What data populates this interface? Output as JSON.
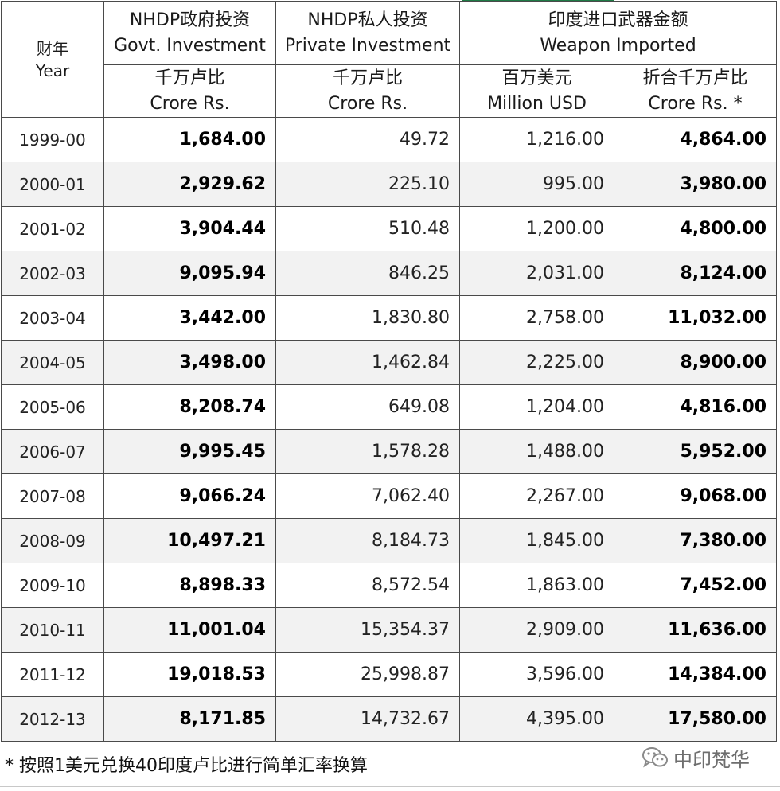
{
  "header": {
    "year": {
      "zh": "财年",
      "en": "Year"
    },
    "govt": {
      "zh": "NHDP政府投资",
      "en": "Govt. Investment"
    },
    "private": {
      "zh": "NHDP私人投资",
      "en": "Private Investment"
    },
    "weapon": {
      "zh": "印度进口武器金额",
      "en": "Weapon Imported"
    },
    "units": {
      "govt": {
        "zh": "千万卢比",
        "en": "Crore Rs."
      },
      "private": {
        "zh": "千万卢比",
        "en": "Crore Rs."
      },
      "usd": {
        "zh": "百万美元",
        "en": "Million USD"
      },
      "converted": {
        "zh": "折合千万卢比",
        "en": "Crore Rs. *"
      }
    }
  },
  "rows": [
    {
      "year": "1999-00",
      "govt": "1,684.00",
      "private": "49.72",
      "usd": "1,216.00",
      "crore": "4,864.00"
    },
    {
      "year": "2000-01",
      "govt": "2,929.62",
      "private": "225.10",
      "usd": "995.00",
      "crore": "3,980.00"
    },
    {
      "year": "2001-02",
      "govt": "3,904.44",
      "private": "510.48",
      "usd": "1,200.00",
      "crore": "4,800.00"
    },
    {
      "year": "2002-03",
      "govt": "9,095.94",
      "private": "846.25",
      "usd": "2,031.00",
      "crore": "8,124.00"
    },
    {
      "year": "2003-04",
      "govt": "3,442.00",
      "private": "1,830.80",
      "usd": "2,758.00",
      "crore": "11,032.00"
    },
    {
      "year": "2004-05",
      "govt": "3,498.00",
      "private": "1,462.84",
      "usd": "2,225.00",
      "crore": "8,900.00"
    },
    {
      "year": "2005-06",
      "govt": "8,208.74",
      "private": "649.08",
      "usd": "1,204.00",
      "crore": "4,816.00"
    },
    {
      "year": "2006-07",
      "govt": "9,995.45",
      "private": "1,578.28",
      "usd": "1,488.00",
      "crore": "5,952.00"
    },
    {
      "year": "2007-08",
      "govt": "9,066.24",
      "private": "7,062.40",
      "usd": "2,267.00",
      "crore": "9,068.00"
    },
    {
      "year": "2008-09",
      "govt": "10,497.21",
      "private": "8,184.73",
      "usd": "1,845.00",
      "crore": "7,380.00"
    },
    {
      "year": "2009-10",
      "govt": "8,898.33",
      "private": "8,572.54",
      "usd": "1,863.00",
      "crore": "7,452.00"
    },
    {
      "year": "2010-11",
      "govt": "11,001.04",
      "private": "15,354.37",
      "usd": "2,909.00",
      "crore": "11,636.00"
    },
    {
      "year": "2011-12",
      "govt": "19,018.53",
      "private": "25,998.87",
      "usd": "3,596.00",
      "crore": "14,384.00"
    },
    {
      "year": "2012-13",
      "govt": "8,171.85",
      "private": "14,732.67",
      "usd": "4,395.00",
      "crore": "17,580.00"
    }
  ],
  "footnote": "* 按照1美元兑换40印度卢比进行简单汇率换算",
  "watermark": {
    "text": "中印梵华",
    "icon": "wechat-icon"
  },
  "colors": {
    "row_shade": "#f2f2f2",
    "border": "#4a4a4a",
    "accent_mark": "#1e7a45",
    "watermark": "#6e6e6e"
  }
}
